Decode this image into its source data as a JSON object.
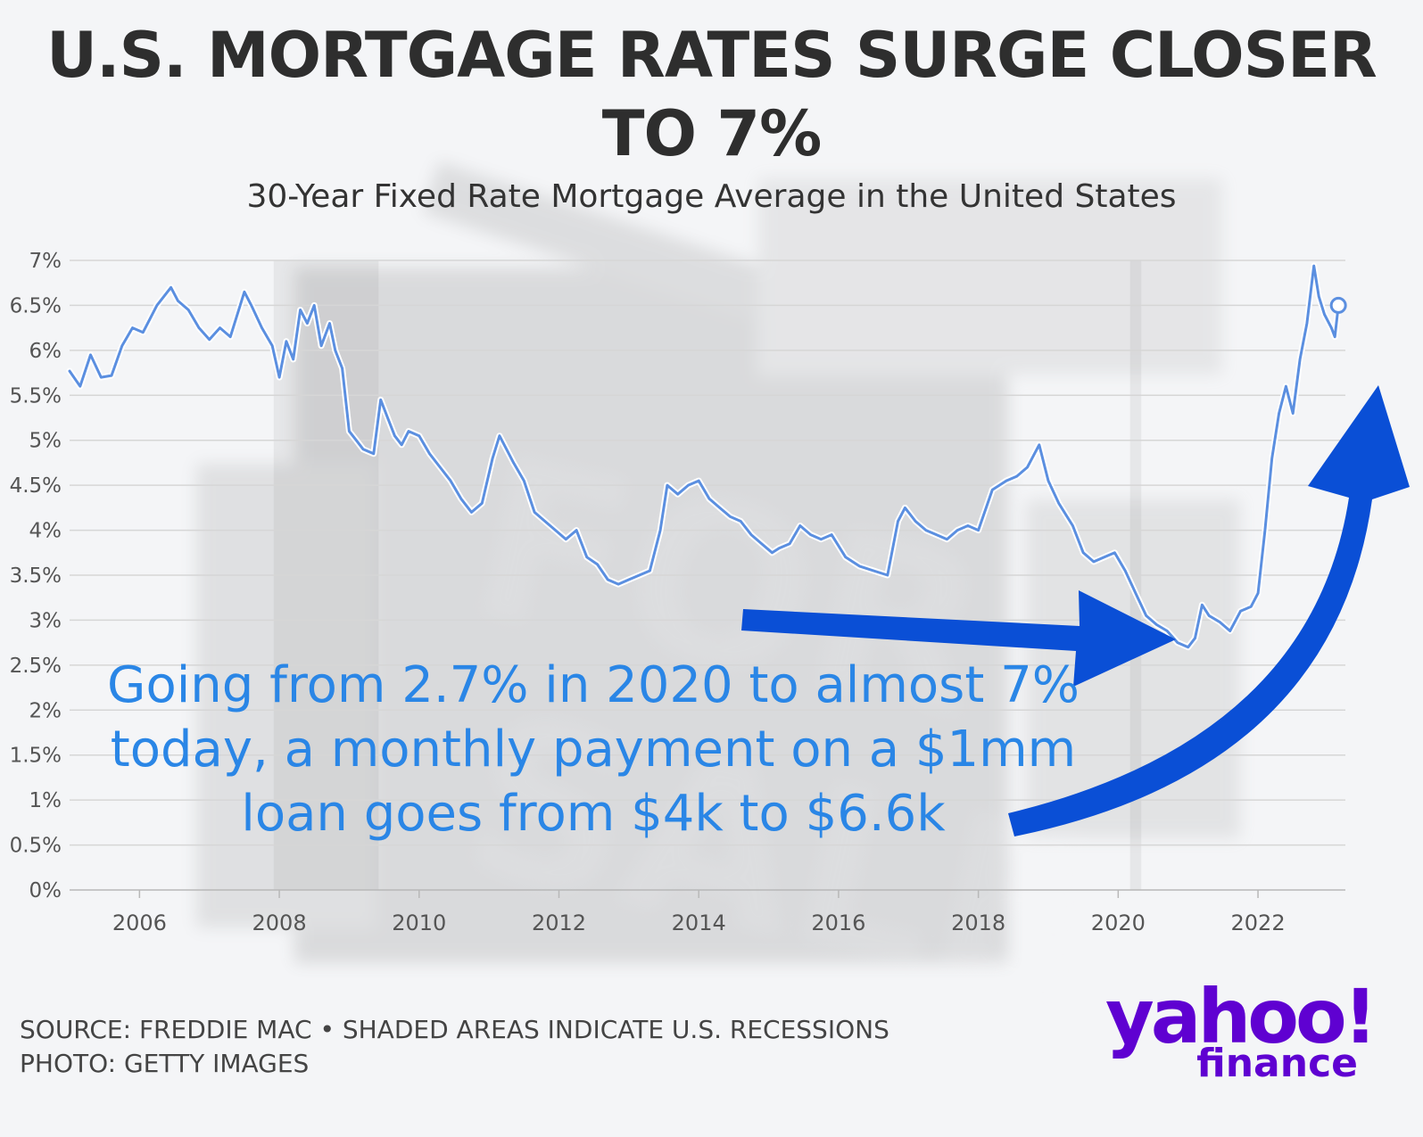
{
  "header": {
    "title_line1": "U.S. MORTGAGE RATES SURGE CLOSER",
    "title_line2": "TO 7%",
    "subtitle": "30-Year Fixed Rate Mortgage Average in the United States"
  },
  "annotation": {
    "line1": "Going from 2.7% in 2020 to almost 7%",
    "line2": "today, a monthly payment on a $1mm",
    "line3": "loan goes from $4k to $6.6k"
  },
  "footer": {
    "source": "SOURCE: FREDDIE MAC • SHADED AREAS INDICATE U.S. RECESSIONS",
    "photo": "PHOTO: GETTY IMAGES"
  },
  "logo": {
    "word": "yahoo!",
    "sub": "finance"
  },
  "colors": {
    "line": "#5b8fe0",
    "arrow": "#0a4fd6",
    "annotation_text": "#2a86e6",
    "brand": "#5f01d1",
    "grid": "#d6d6d6"
  },
  "chart_data": {
    "type": "line",
    "title": "U.S. MORTGAGE RATES SURGE CLOSER TO 7%",
    "subtitle": "30-Year Fixed Rate Mortgage Average in the United States",
    "xlabel": "",
    "ylabel": "",
    "xlim": [
      2005.0,
      2023.25
    ],
    "ylim": [
      0,
      7
    ],
    "grid": true,
    "x_ticks": [
      2006,
      2008,
      2010,
      2012,
      2014,
      2016,
      2018,
      2020,
      2022
    ],
    "x_tick_labels": [
      "2006",
      "2008",
      "2010",
      "2012",
      "2014",
      "2016",
      "2018",
      "2020",
      "2022"
    ],
    "y_ticks": [
      0,
      0.5,
      1,
      1.5,
      2,
      2.5,
      3,
      3.5,
      4,
      4.5,
      5,
      5.5,
      6,
      6.5,
      7
    ],
    "y_tick_labels": [
      "0%",
      "0.5%",
      "1%",
      "1.5%",
      "2%",
      "2.5%",
      "3%",
      "3.5%",
      "4%",
      "4.5%",
      "5%",
      "5.5%",
      "6%",
      "6.5%",
      "7%"
    ],
    "recessions": [
      [
        2007.92,
        2009.42
      ],
      [
        2020.17,
        2020.33
      ]
    ],
    "series": [
      {
        "x": [
          2005.0,
          2005.15,
          2005.3,
          2005.45,
          2005.6,
          2005.75,
          2005.9,
          2006.05,
          2006.25,
          2006.45,
          2006.55,
          2006.7,
          2006.85,
          2007.0,
          2007.15,
          2007.3,
          2007.5,
          2007.6,
          2007.75,
          2007.9,
          2008.0,
          2008.1,
          2008.2,
          2008.3,
          2008.4,
          2008.5,
          2008.6,
          2008.72,
          2008.8,
          2008.9,
          2009.0,
          2009.1,
          2009.2,
          2009.35,
          2009.45,
          2009.55,
          2009.65,
          2009.75,
          2009.85,
          2010.0,
          2010.15,
          2010.3,
          2010.45,
          2010.6,
          2010.75,
          2010.9,
          2011.05,
          2011.15,
          2011.35,
          2011.5,
          2011.65,
          2011.8,
          2011.95,
          2012.1,
          2012.25,
          2012.4,
          2012.55,
          2012.7,
          2012.85,
          2013.0,
          2013.15,
          2013.3,
          2013.45,
          2013.55,
          2013.7,
          2013.85,
          2014.0,
          2014.15,
          2014.3,
          2014.45,
          2014.6,
          2014.75,
          2014.9,
          2015.05,
          2015.15,
          2015.3,
          2015.45,
          2015.6,
          2015.75,
          2015.9,
          2016.1,
          2016.3,
          2016.5,
          2016.7,
          2016.85,
          2016.95,
          2017.1,
          2017.25,
          2017.4,
          2017.55,
          2017.7,
          2017.85,
          2018.0,
          2018.2,
          2018.4,
          2018.55,
          2018.7,
          2018.87,
          2019.0,
          2019.15,
          2019.35,
          2019.5,
          2019.65,
          2019.8,
          2019.95,
          2020.1,
          2020.25,
          2020.4,
          2020.55,
          2020.7,
          2020.85,
          2021.0,
          2021.1,
          2021.2,
          2021.3,
          2021.45,
          2021.6,
          2021.75,
          2021.9,
          2022.0,
          2022.1,
          2022.2,
          2022.3,
          2022.4,
          2022.5,
          2022.6,
          2022.7,
          2022.8,
          2022.87,
          2022.95,
          2023.05,
          2023.1,
          2023.15
        ],
        "values": [
          5.77,
          5.6,
          5.95,
          5.7,
          5.72,
          6.05,
          6.25,
          6.2,
          6.5,
          6.7,
          6.55,
          6.45,
          6.25,
          6.12,
          6.25,
          6.15,
          6.65,
          6.5,
          6.25,
          6.05,
          5.7,
          6.1,
          5.9,
          6.45,
          6.3,
          6.5,
          6.05,
          6.3,
          6.0,
          5.8,
          5.1,
          5.0,
          4.9,
          4.85,
          5.45,
          5.25,
          5.05,
          4.95,
          5.1,
          5.05,
          4.85,
          4.7,
          4.55,
          4.35,
          4.2,
          4.3,
          4.8,
          5.05,
          4.75,
          4.55,
          4.2,
          4.1,
          4.0,
          3.9,
          4.0,
          3.7,
          3.62,
          3.45,
          3.4,
          3.45,
          3.5,
          3.55,
          4.0,
          4.5,
          4.4,
          4.5,
          4.55,
          4.35,
          4.25,
          4.15,
          4.1,
          3.95,
          3.85,
          3.75,
          3.8,
          3.85,
          4.05,
          3.95,
          3.9,
          3.95,
          3.7,
          3.6,
          3.55,
          3.5,
          4.1,
          4.25,
          4.1,
          4.0,
          3.95,
          3.9,
          4.0,
          4.05,
          4.0,
          4.45,
          4.55,
          4.6,
          4.7,
          4.95,
          4.55,
          4.3,
          4.05,
          3.75,
          3.65,
          3.7,
          3.75,
          3.55,
          3.3,
          3.05,
          2.95,
          2.88,
          2.75,
          2.7,
          2.8,
          3.17,
          3.05,
          2.98,
          2.88,
          3.1,
          3.15,
          3.3,
          4.0,
          4.8,
          5.3,
          5.6,
          5.3,
          5.9,
          6.3,
          6.94,
          6.6,
          6.4,
          6.25,
          6.15,
          6.5
        ]
      }
    ]
  }
}
